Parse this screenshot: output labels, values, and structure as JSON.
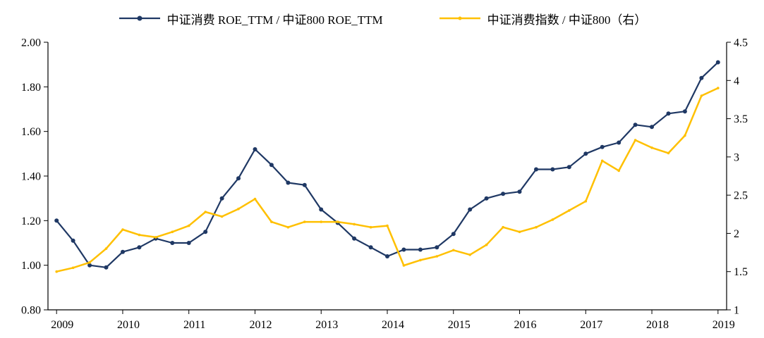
{
  "legend": {
    "items": [
      {
        "label": "中证消费 ROE_TTM / 中证800 ROE_TTM"
      },
      {
        "label": "中证消费指数 / 中证800（右）"
      }
    ]
  },
  "chart_data": {
    "type": "line",
    "title": "",
    "xlabel": "",
    "ylabel_left": "",
    "ylabel_right": "",
    "grid": false,
    "legend_position": "top-center",
    "axis_color": "#000000",
    "x_range": [
      2008.87,
      2019.13
    ],
    "x_ticks": [
      2009,
      2010,
      2011,
      2012,
      2013,
      2014,
      2015,
      2016,
      2017,
      2018,
      2019
    ],
    "x_labels": [
      "2009",
      "2010",
      "2011",
      "2012",
      "2013",
      "2014",
      "2015",
      "2016",
      "2017",
      "2018",
      "2019"
    ],
    "y_left": {
      "range": [
        0.8,
        2.0
      ],
      "ticks": [
        2.0,
        1.8,
        1.6,
        1.4,
        1.2,
        1.0,
        0.8
      ],
      "labels": [
        "2.00",
        "1.80",
        "1.60",
        "1.40",
        "1.20",
        "1.00",
        "0.80"
      ]
    },
    "y_right": {
      "range": [
        1,
        4.5
      ],
      "ticks": [
        4.5,
        4,
        3.5,
        3,
        2.5,
        2,
        1.5,
        1
      ],
      "labels": [
        "4.5",
        "4",
        "3.5",
        "3",
        "2.5",
        "2",
        "1.5",
        "1"
      ]
    },
    "x": [
      2009,
      2009.25,
      2009.5,
      2009.75,
      2010,
      2010.25,
      2010.5,
      2010.75,
      2011,
      2011.25,
      2011.5,
      2011.75,
      2012,
      2012.25,
      2012.5,
      2012.75,
      2013,
      2013.25,
      2013.5,
      2013.75,
      2014,
      2014.25,
      2014.5,
      2014.75,
      2015,
      2015.25,
      2015.5,
      2015.75,
      2016,
      2016.25,
      2016.5,
      2016.75,
      2017,
      2017.25,
      2017.5,
      2017.75,
      2018,
      2018.25,
      2018.5,
      2018.75,
      2019
    ],
    "series": [
      {
        "name": "中证消费 ROE_TTM / 中证800 ROE_TTM",
        "axis": "left",
        "color": "#1f3864",
        "width": 2.2,
        "marker": true,
        "marker_size": 3,
        "values": [
          1.2,
          1.11,
          1.0,
          0.99,
          1.06,
          1.08,
          1.12,
          1.1,
          1.1,
          1.15,
          1.3,
          1.39,
          1.52,
          1.45,
          1.37,
          1.36,
          1.25,
          1.19,
          1.12,
          1.08,
          1.04,
          1.07,
          1.07,
          1.08,
          1.14,
          1.25,
          1.3,
          1.32,
          1.33,
          1.43,
          1.43,
          1.44,
          1.5,
          1.53,
          1.55,
          1.63,
          1.62,
          1.68,
          1.69,
          1.84,
          1.91
        ]
      },
      {
        "name": "中证消费指数 / 中证800（右）",
        "axis": "right",
        "color": "#ffc000",
        "width": 2.5,
        "marker": true,
        "marker_size": 1.8,
        "values": [
          1.5,
          1.55,
          1.62,
          1.8,
          2.05,
          1.98,
          1.95,
          2.02,
          2.1,
          2.28,
          2.22,
          2.32,
          2.45,
          2.15,
          2.08,
          2.15,
          2.15,
          2.15,
          2.12,
          2.08,
          2.1,
          1.58,
          1.65,
          1.7,
          1.78,
          1.72,
          1.85,
          2.08,
          2.02,
          2.08,
          2.18,
          2.3,
          2.42,
          2.95,
          2.82,
          3.22,
          3.12,
          3.05,
          3.28,
          3.8,
          3.9
        ]
      }
    ]
  }
}
